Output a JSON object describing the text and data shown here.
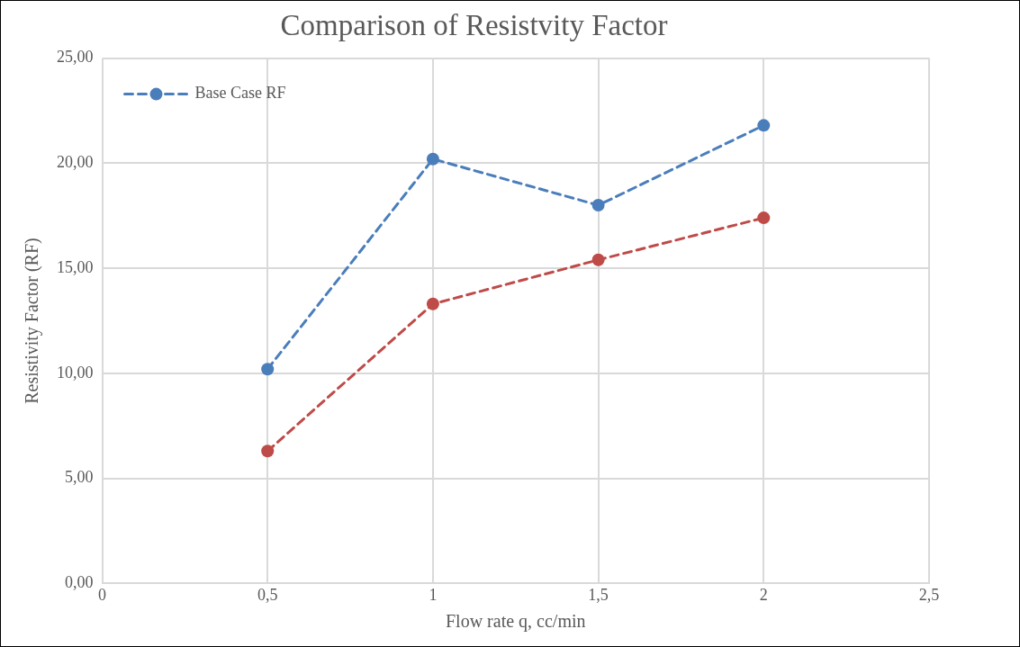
{
  "chart_data": {
    "type": "line",
    "title": "Comparison of Resistvity Factor",
    "xlabel": "Flow rate q, cc/min",
    "ylabel": "Resistivity Factor (RF)",
    "x": [
      0.5,
      1,
      1.5,
      2
    ],
    "series": [
      {
        "name": "Base Case RF",
        "color": "#4a7ebb",
        "values": [
          10.2,
          20.2,
          18.0,
          21.8
        ]
      },
      {
        "color": "#be4b48",
        "values": [
          6.3,
          13.3,
          15.4,
          17.4
        ]
      }
    ],
    "xlim": [
      0,
      2.5
    ],
    "xticks": [
      0,
      {
        "value": 0.5,
        "label": "0,5"
      },
      1,
      {
        "value": 1.5,
        "label": "1,5"
      },
      2,
      {
        "value": 2.5,
        "label": "2,5"
      }
    ],
    "ylim": [
      0,
      25
    ],
    "yticks": [
      {
        "value": 0,
        "label": "0,00"
      },
      {
        "value": 5,
        "label": "5,00"
      },
      {
        "value": 10,
        "label": "10,00"
      },
      {
        "value": 15,
        "label": "15,00"
      },
      {
        "value": 20,
        "label": "20,00"
      },
      {
        "value": 25,
        "label": "25,00"
      }
    ],
    "grid": true,
    "legend": "top left",
    "marker": "circle",
    "line_style": "dashed"
  }
}
